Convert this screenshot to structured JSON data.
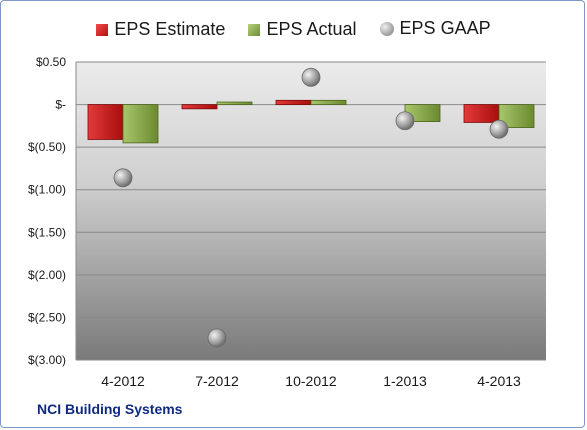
{
  "chart_data": {
    "type": "bar",
    "categories": [
      "4-2012",
      "7-2012",
      "10-2012",
      "1-2013",
      "4-2013"
    ],
    "series": [
      {
        "name": "EPS Estimate",
        "type": "bar",
        "color": "#d42020",
        "values": [
          -0.41,
          -0.05,
          0.05,
          0.0,
          -0.21
        ]
      },
      {
        "name": "EPS Actual",
        "type": "bar",
        "color": "#8fae4c",
        "values": [
          -0.45,
          0.03,
          0.05,
          -0.2,
          -0.27
        ]
      },
      {
        "name": "EPS GAAP",
        "type": "scatter",
        "color": "#a8a8a8",
        "values": [
          -0.86,
          -2.74,
          0.32,
          -0.19,
          -0.29
        ]
      }
    ],
    "y_ticks": [
      0.5,
      0,
      -0.5,
      -1.0,
      -1.5,
      -2.0,
      -2.5,
      -3.0
    ],
    "y_tick_labels": [
      "$0.50",
      "$-",
      "$(0.50)",
      "$(1.00)",
      "$(1.50)",
      "$(2.00)",
      "$(2.50)",
      "$(3.00)"
    ],
    "ylim": [
      -3.0,
      0.5
    ],
    "grid": true,
    "legend": "top"
  },
  "footer_label": "NCI Building Systems"
}
